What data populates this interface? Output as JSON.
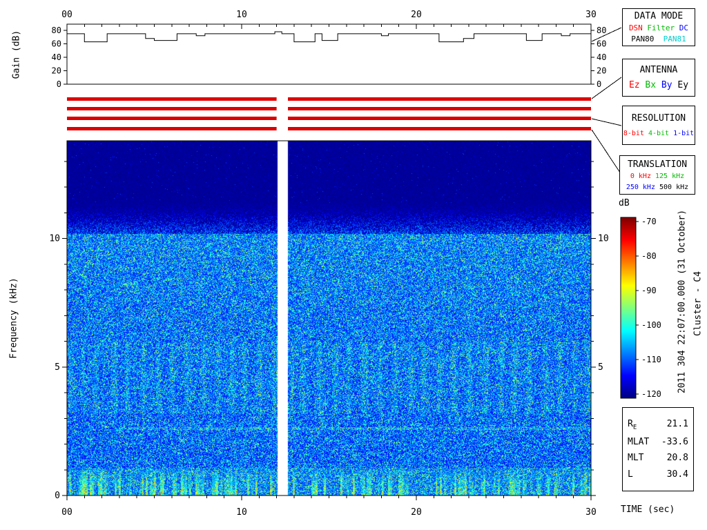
{
  "chart_data": [
    {
      "type": "line",
      "name": "gain-step-plot",
      "ylabel": "Gain (dB)",
      "xlim": [
        0,
        30
      ],
      "ylim": [
        0,
        89
      ],
      "yticks": [
        0,
        20,
        40,
        60,
        80
      ],
      "xticks": [
        0,
        10,
        20,
        30
      ],
      "xtick_labels": [
        "00",
        "10",
        "20",
        "30"
      ],
      "step_series": {
        "name": "gain",
        "points_t_db": [
          [
            0,
            75
          ],
          [
            1.0,
            63
          ],
          [
            2.3,
            75
          ],
          [
            4.5,
            68
          ],
          [
            5.0,
            65
          ],
          [
            6.3,
            75
          ],
          [
            7.4,
            72
          ],
          [
            7.9,
            75
          ],
          [
            11.9,
            78
          ],
          [
            12.3,
            75
          ],
          [
            13.0,
            63
          ],
          [
            14.2,
            75
          ],
          [
            14.6,
            65
          ],
          [
            15.5,
            75
          ],
          [
            18.0,
            72
          ],
          [
            18.4,
            75
          ],
          [
            21.3,
            63
          ],
          [
            22.7,
            68
          ],
          [
            23.3,
            75
          ],
          [
            26.3,
            65
          ],
          [
            27.2,
            75
          ],
          [
            28.3,
            72
          ],
          [
            28.8,
            75
          ]
        ]
      }
    },
    {
      "type": "heatmap",
      "name": "wbd-spectrogram",
      "ylabel": "Frequency (kHz)",
      "xlabel": "TIME (sec)",
      "xlim": [
        0,
        30
      ],
      "ylim_khz": [
        0,
        13.8
      ],
      "yticks": [
        0,
        5,
        10
      ],
      "yticks_right": [
        5,
        10
      ],
      "xticks": [
        0,
        10,
        20,
        30
      ],
      "xtick_labels": [
        "00",
        "10",
        "20",
        "30"
      ],
      "colorbar": {
        "label": "dB",
        "min": -120,
        "max": -70,
        "ticks": [
          -70,
          -80,
          -90,
          -100,
          -110,
          -120
        ],
        "colormap": "jet"
      },
      "data_gap_sec": [
        12.05,
        12.62
      ],
      "noise_ceiling_khz": 11.0,
      "background_level_db": -113,
      "features": {
        "striation_band_khz": [
          3.2,
          6.0
        ],
        "striation_period_sec": 0.85,
        "enhanced_line_khz": 2.62,
        "low_freq_enhancement_below_khz": 1.1
      }
    }
  ],
  "status_bars": {
    "color": "#dd0000",
    "row_count": 4,
    "gap_sec": [
      12.0,
      12.65
    ]
  },
  "boxes": [
    {
      "id": "data-mode",
      "title": "DATA MODE",
      "lines": [
        [
          {
            "text": "DSN",
            "color": "#ff0000"
          },
          {
            "text": " Filter",
            "color": "#00bb00"
          },
          {
            "text": " DC",
            "color": "#0000ff"
          }
        ],
        [
          {
            "text": "PAN80",
            "color": "#000000"
          },
          {
            "text": "  PAN81",
            "color": "#00cccc"
          }
        ]
      ]
    },
    {
      "id": "antenna",
      "title": "ANTENNA",
      "lines": [
        [
          {
            "text": "Ez",
            "color": "#ff0000"
          },
          {
            "text": " Bx",
            "color": "#00bb00"
          },
          {
            "text": " By",
            "color": "#0000ff"
          },
          {
            "text": " Ey",
            "color": "#000000"
          }
        ]
      ]
    },
    {
      "id": "resolution",
      "title": "RESOLUTION",
      "lines": [
        [
          {
            "text": "8-bit",
            "color": "#ff0000"
          },
          {
            "text": " 4-bit",
            "color": "#00bb00"
          },
          {
            "text": " 1-bit",
            "color": "#0000ff"
          }
        ]
      ]
    },
    {
      "id": "translation",
      "title": "TRANSLATION",
      "lines": [
        [
          {
            "text": "0 kHz",
            "color": "#ff0000"
          },
          {
            "text": " 125 kHz",
            "color": "#00bb00"
          }
        ],
        [
          {
            "text": "250 kHz",
            "color": "#0000ff"
          },
          {
            "text": " 500 kHz",
            "color": "#000000"
          }
        ]
      ]
    }
  ],
  "ephemeris": {
    "rows": [
      {
        "label": "R",
        "sub": "E",
        "value": "21.1"
      },
      {
        "label": "MLAT",
        "sub": "",
        "value": "-33.6"
      },
      {
        "label": "MLT",
        "sub": "",
        "value": "20.8"
      },
      {
        "label": "L",
        "sub": "",
        "value": "30.4"
      }
    ]
  },
  "side_text": {
    "datetime": "2011 304 22:07:00.000 (31 October)",
    "spacecraft": "Cluster - C4"
  }
}
